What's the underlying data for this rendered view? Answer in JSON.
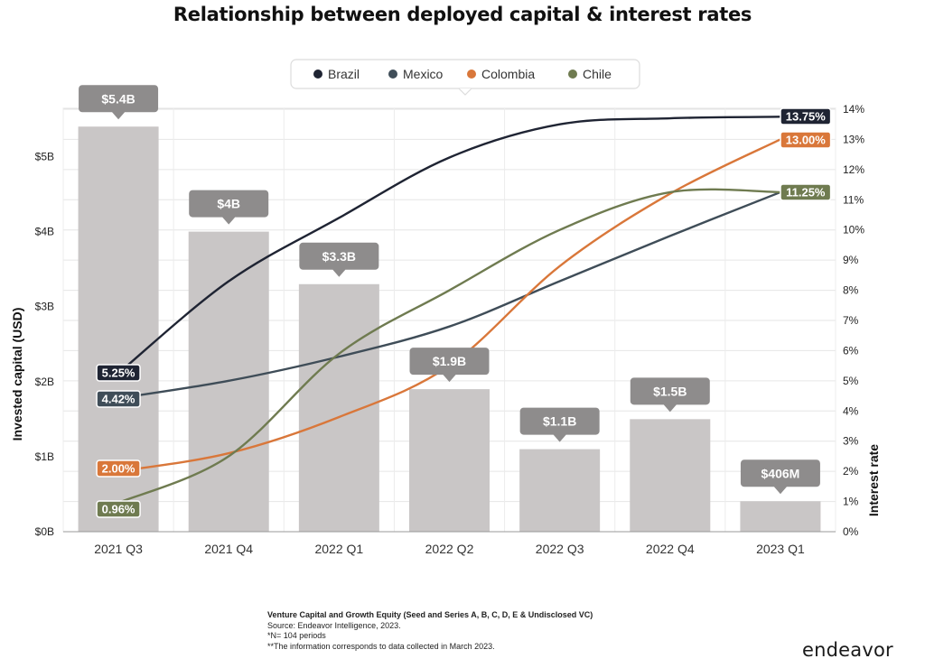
{
  "chart_data": {
    "type": "bar+line",
    "title": "Relationship between deployed capital & interest rates",
    "categories": [
      "2021 Q3",
      "2021 Q4",
      "2022 Q1",
      "2022 Q2",
      "2022 Q3",
      "2022 Q4",
      "2023 Q1"
    ],
    "bars": {
      "name": "Invested capital",
      "unit": "USD billions",
      "values": [
        5.4,
        4.0,
        3.3,
        1.9,
        1.1,
        1.5,
        0.406
      ],
      "labels": [
        "$5.4B",
        "$4B",
        "$3.3B",
        "$1.9B",
        "$1.1B",
        "$1.5B",
        "$406M"
      ],
      "color": "#c9c6c6",
      "label_color": "#8e8c8c"
    },
    "series": [
      {
        "name": "Brazil",
        "color": "#1f2433",
        "values": [
          5.25,
          8.3,
          10.4,
          12.4,
          13.5,
          13.7,
          13.75
        ],
        "start_label": "5.25%",
        "end_label": "13.75%"
      },
      {
        "name": "Mexico",
        "color": "#3f4d58",
        "values": [
          4.42,
          5.0,
          5.8,
          6.8,
          8.3,
          9.8,
          11.25
        ],
        "start_label": "4.42%",
        "end_label": "11.25%"
      },
      {
        "name": "Colombia",
        "color": "#d9773a",
        "values": [
          2.0,
          2.6,
          3.8,
          5.5,
          8.8,
          11.2,
          13.0
        ],
        "start_label": "2.00%",
        "end_label": "13.00%"
      },
      {
        "name": "Chile",
        "color": "#6f7b50",
        "values": [
          0.96,
          2.5,
          5.9,
          8.0,
          10.0,
          11.25,
          11.25
        ],
        "start_label": "0.96%",
        "end_label": "11.25%"
      }
    ],
    "y_left": {
      "label": "Invested capital (USD)",
      "ticks": [
        "$0B",
        "$1B",
        "$2B",
        "$3B",
        "$4B",
        "$5B"
      ],
      "range": [
        0,
        5.6
      ]
    },
    "y_right": {
      "label": "Interest rate",
      "ticks": [
        "0%",
        "1%",
        "2%",
        "3%",
        "4%",
        "5%",
        "6%",
        "7%",
        "8%",
        "9%",
        "10%",
        "11%",
        "12%",
        "13%",
        "14%"
      ],
      "range": [
        0,
        14
      ]
    },
    "grid": true,
    "legend_position": "top-center"
  },
  "notes": {
    "line1": "Venture Capital and Growth Equity (Seed and Series A, B, C, D, E & Undisclosed VC)",
    "line2": "Source: Endeavor Intelligence, 2023.",
    "line3": "*N= 104 periods",
    "line4": "**The information corresponds to data collected in March 2023."
  },
  "brand": "endeavor"
}
